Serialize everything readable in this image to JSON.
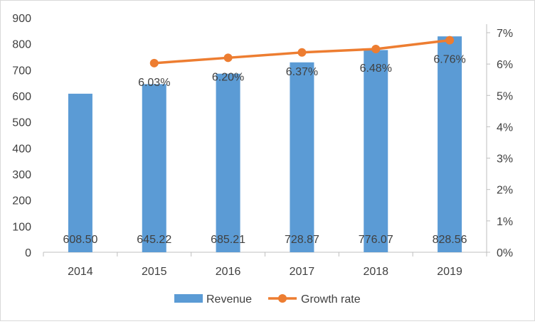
{
  "chart_data": {
    "type": "bar+line",
    "categories": [
      "2014",
      "2015",
      "2016",
      "2017",
      "2018",
      "2019"
    ],
    "series": [
      {
        "name": "Revenue",
        "type": "bar",
        "axis": "left",
        "color": "#5B9BD5",
        "values": [
          608.5,
          645.22,
          685.21,
          728.87,
          776.07,
          828.56
        ],
        "labels": [
          "608.50",
          "645.22",
          "685.21",
          "728.87",
          "776.07",
          "828.56"
        ]
      },
      {
        "name": "Growth rate",
        "type": "line",
        "axis": "right",
        "color": "#ED7D31",
        "values": [
          null,
          6.03,
          6.2,
          6.37,
          6.48,
          6.76
        ],
        "labels": [
          "",
          "6.03%",
          "6.20%",
          "6.37%",
          "6.48%",
          "6.76%"
        ]
      }
    ],
    "left_axis": {
      "ylim": [
        0,
        900
      ],
      "ticks": [
        "0",
        "100",
        "200",
        "300",
        "400",
        "500",
        "600",
        "700",
        "800",
        "900"
      ]
    },
    "right_axis": {
      "ylim": [
        0,
        7
      ],
      "ticks": [
        "0%",
        "1%",
        "2%",
        "3%",
        "4%",
        "5%",
        "6%",
        "7%"
      ]
    },
    "legend": {
      "placement": "bottom",
      "entries": [
        "Revenue",
        "Growth rate"
      ]
    },
    "grid": false
  }
}
